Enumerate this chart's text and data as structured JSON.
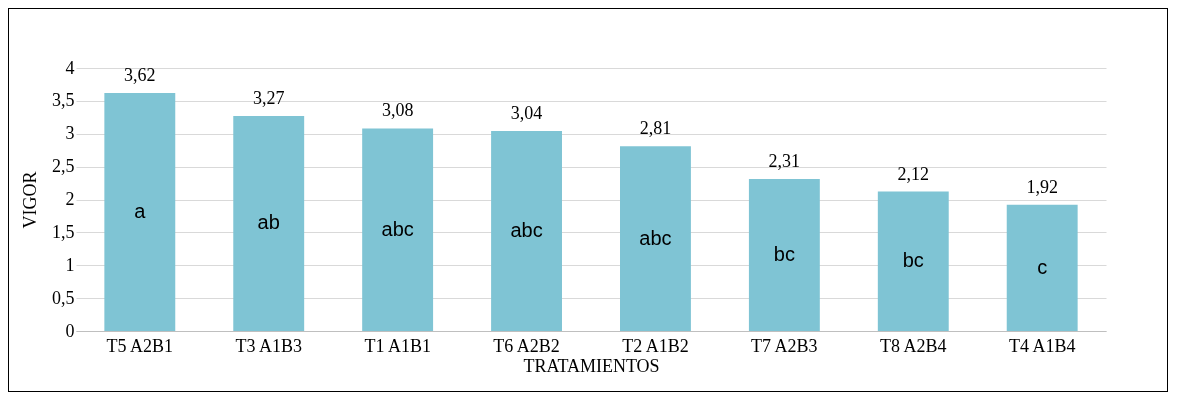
{
  "chart_data": {
    "type": "bar",
    "xlabel": "TRATAMIENTOS",
    "ylabel": "VIGOR",
    "categories": [
      "T5 A2B1",
      "T3 A1B3",
      "T1 A1B1",
      "T6 A2B2",
      "T2 A1B2",
      "T7 A2B3",
      "T8 A2B4",
      "T4 A1B4"
    ],
    "values": [
      3.62,
      3.27,
      3.08,
      3.04,
      2.81,
      2.31,
      2.12,
      1.92
    ],
    "value_labels": [
      "3,62",
      "3,27",
      "3,08",
      "3,04",
      "2,81",
      "2,31",
      "2,12",
      "1,92"
    ],
    "color": "#7fc4d4",
    "ylim": [
      0,
      4
    ],
    "yticks": [
      {
        "value": 0,
        "label": "0"
      },
      {
        "value": 0.5,
        "label": "0,5"
      },
      {
        "value": 1,
        "label": "1"
      },
      {
        "value": 1.5,
        "label": "1,5"
      },
      {
        "value": 2,
        "label": "2"
      },
      {
        "value": 2.5,
        "label": "2,5"
      },
      {
        "value": 3,
        "label": "3"
      },
      {
        "value": 3.5,
        "label": "3,5"
      },
      {
        "value": 4,
        "label": "4"
      }
    ],
    "grid": "y",
    "annotations": [
      "a",
      "ab",
      "abc",
      "abc",
      "abc",
      "bc",
      "bc",
      "c"
    ]
  }
}
